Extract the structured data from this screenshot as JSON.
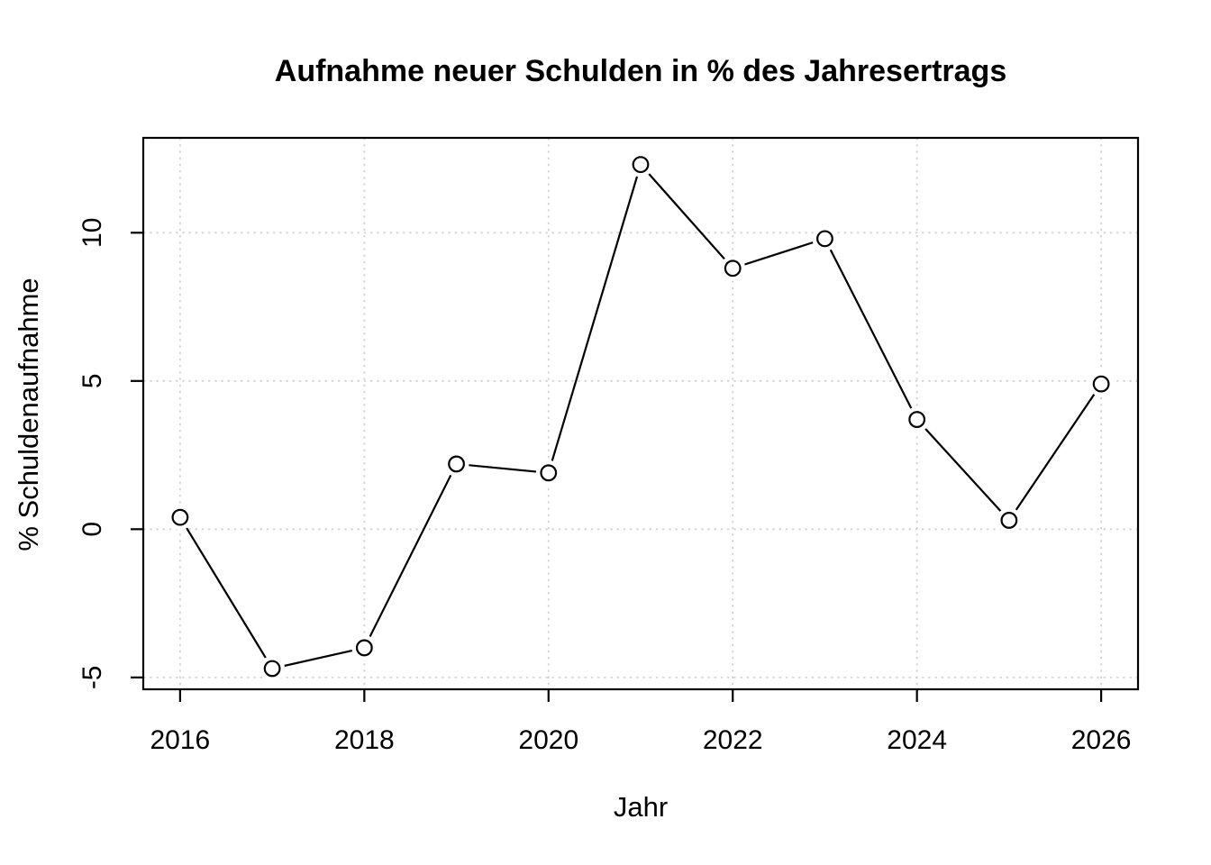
{
  "figure": {
    "background_color": "#ffffff",
    "text_color": "#000000"
  },
  "chart_data": {
    "type": "line",
    "title": "Aufnahme neuer Schulden in % des Jahresertrags",
    "xlabel": "Jahr",
    "ylabel": "% Schuldenaufnahme",
    "x": [
      2016,
      2017,
      2018,
      2019,
      2020,
      2021,
      2022,
      2023,
      2024,
      2025,
      2026
    ],
    "series": [
      {
        "name": "Schuldenaufnahme",
        "values": [
          0.4,
          -4.7,
          -4.0,
          2.2,
          1.9,
          12.3,
          8.8,
          9.8,
          3.7,
          0.3,
          4.9
        ]
      }
    ],
    "xticks": [
      2016,
      2018,
      2020,
      2022,
      2024,
      2026
    ],
    "yticks": [
      -5,
      0,
      5,
      10
    ],
    "xlim": [
      2015.6,
      2026.4
    ],
    "ylim": [
      -5.4,
      13.2
    ],
    "grid": "dotted",
    "grid_color": "#d3d3d3",
    "line_color": "#000000",
    "marker": "open-circle",
    "marker_fill": "#ffffff",
    "axis_color": "#000000",
    "legend_position": "none"
  }
}
